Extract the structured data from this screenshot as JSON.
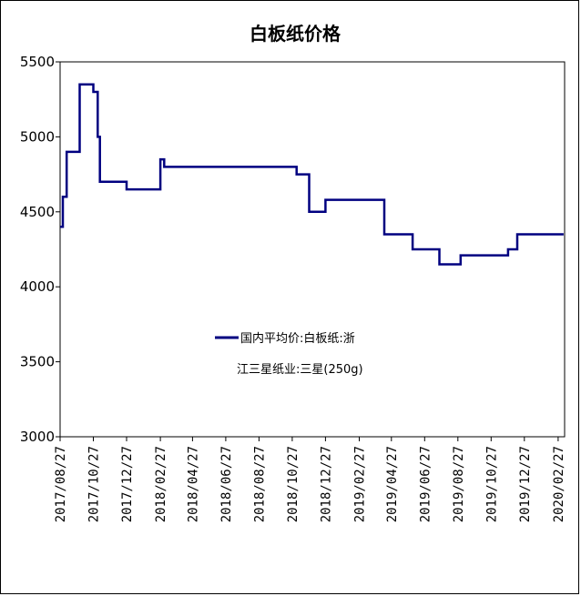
{
  "chart_data": {
    "type": "line",
    "title": "白板纸价格",
    "xlabel": "",
    "ylabel": "",
    "ylim": [
      3000,
      5500
    ],
    "y_ticks": [
      "5500",
      "5000",
      "4500",
      "4000",
      "3500",
      "3000"
    ],
    "x_ticks": [
      "2017/08/27",
      "2017/10/27",
      "2017/12/27",
      "2018/02/27",
      "2018/04/27",
      "2018/06/27",
      "2018/08/27",
      "2018/10/27",
      "2018/12/27",
      "2019/02/27",
      "2019/04/27",
      "2019/06/27",
      "2019/08/27",
      "2019/10/27",
      "2019/12/27",
      "2020/02/27"
    ],
    "legend": {
      "line1": "国内平均价:白板纸:浙",
      "line2": "江三星纸业:三星(250g)",
      "placement": "center"
    },
    "series": [
      {
        "name": "国内平均价:白板纸:浙江三星纸业:三星(250g)",
        "color": "#000080",
        "points": [
          [
            "2017/08/27",
            4400
          ],
          [
            "2017/09/01",
            4400
          ],
          [
            "2017/09/01",
            4600
          ],
          [
            "2017/09/08",
            4600
          ],
          [
            "2017/09/08",
            4900
          ],
          [
            "2017/10/02",
            4900
          ],
          [
            "2017/10/02",
            5350
          ],
          [
            "2017/10/27",
            5350
          ],
          [
            "2017/10/27",
            5300
          ],
          [
            "2017/11/04",
            5300
          ],
          [
            "2017/11/04",
            5000
          ],
          [
            "2017/11/08",
            5000
          ],
          [
            "2017/11/08",
            4700
          ],
          [
            "2017/12/27",
            4700
          ],
          [
            "2017/12/27",
            4650
          ],
          [
            "2018/02/27",
            4650
          ],
          [
            "2018/02/27",
            4850
          ],
          [
            "2018/03/06",
            4850
          ],
          [
            "2018/03/06",
            4800
          ],
          [
            "2018/11/04",
            4800
          ],
          [
            "2018/11/04",
            4750
          ],
          [
            "2018/11/27",
            4750
          ],
          [
            "2018/11/27",
            4500
          ],
          [
            "2018/12/27",
            4500
          ],
          [
            "2018/12/27",
            4580
          ],
          [
            "2019/04/14",
            4580
          ],
          [
            "2019/04/14",
            4350
          ],
          [
            "2019/06/05",
            4350
          ],
          [
            "2019/06/05",
            4250
          ],
          [
            "2019/07/24",
            4250
          ],
          [
            "2019/07/24",
            4150
          ],
          [
            "2019/09/01",
            4150
          ],
          [
            "2019/09/01",
            4210
          ],
          [
            "2019/11/27",
            4210
          ],
          [
            "2019/11/27",
            4250
          ],
          [
            "2019/12/14",
            4250
          ],
          [
            "2019/12/14",
            4350
          ],
          [
            "2020/03/08",
            4350
          ]
        ]
      }
    ]
  }
}
